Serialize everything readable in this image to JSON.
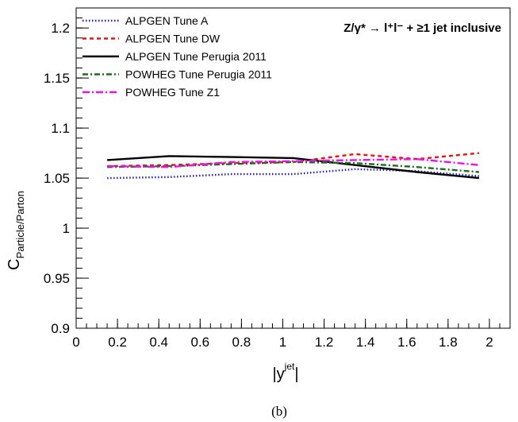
{
  "chart_data": {
    "type": "line",
    "xlabel": "|y",
    "xlabel_sup": "jet",
    "xlabel_close": "|",
    "ylabel": "C",
    "ylabel_sub": "Particle/Parton",
    "annotation": "Z/γ* → l⁺l⁻ + ≥1 jet inclusive",
    "caption": "(b)",
    "xlim": [
      0,
      2.1
    ],
    "ylim": [
      0.9,
      1.22
    ],
    "x_ticks": [
      0,
      0.2,
      0.4,
      0.6,
      0.8,
      1,
      1.2,
      1.4,
      1.6,
      1.8,
      2
    ],
    "x_tick_labels": [
      "0",
      "0.2",
      "0.4",
      "0.6",
      "0.8",
      "1",
      "1.2",
      "1.4",
      "1.6",
      "1.8",
      "2"
    ],
    "y_ticks": [
      0.9,
      0.95,
      1,
      1.05,
      1.1,
      1.15,
      1.2
    ],
    "y_tick_labels": [
      "0.9",
      "0.95",
      "1",
      "1.05",
      "1.1",
      "1.15",
      "1.2"
    ],
    "grid": false,
    "legend_position": "top-left",
    "x": [
      0.15,
      0.45,
      0.75,
      1.05,
      1.35,
      1.65,
      1.95
    ],
    "series": [
      {
        "name": "ALPGEN Tune A",
        "color": "#1a1ad6",
        "dash": "dotted",
        "values": [
          1.05,
          1.051,
          1.054,
          1.054,
          1.059,
          1.057,
          1.052
        ]
      },
      {
        "name": "ALPGEN Tune DW",
        "color": "#ee1111",
        "dash": "dashed",
        "values": [
          1.062,
          1.063,
          1.065,
          1.066,
          1.074,
          1.069,
          1.075
        ]
      },
      {
        "name": "ALPGEN Tune Perugia 2011",
        "color": "#000000",
        "dash": "solid",
        "values": [
          1.068,
          1.072,
          1.071,
          1.07,
          1.063,
          1.056,
          1.05
        ]
      },
      {
        "name": "POWHEG Tune Perugia 2011",
        "color": "#1a6e1a",
        "dash": "dashdot",
        "values": [
          1.061,
          1.062,
          1.064,
          1.066,
          1.065,
          1.061,
          1.056
        ]
      },
      {
        "name": "POWHEG Tune Z1",
        "color": "#ee11ee",
        "dash": "longdashdot",
        "values": [
          1.062,
          1.061,
          1.066,
          1.067,
          1.068,
          1.069,
          1.063
        ]
      }
    ]
  }
}
